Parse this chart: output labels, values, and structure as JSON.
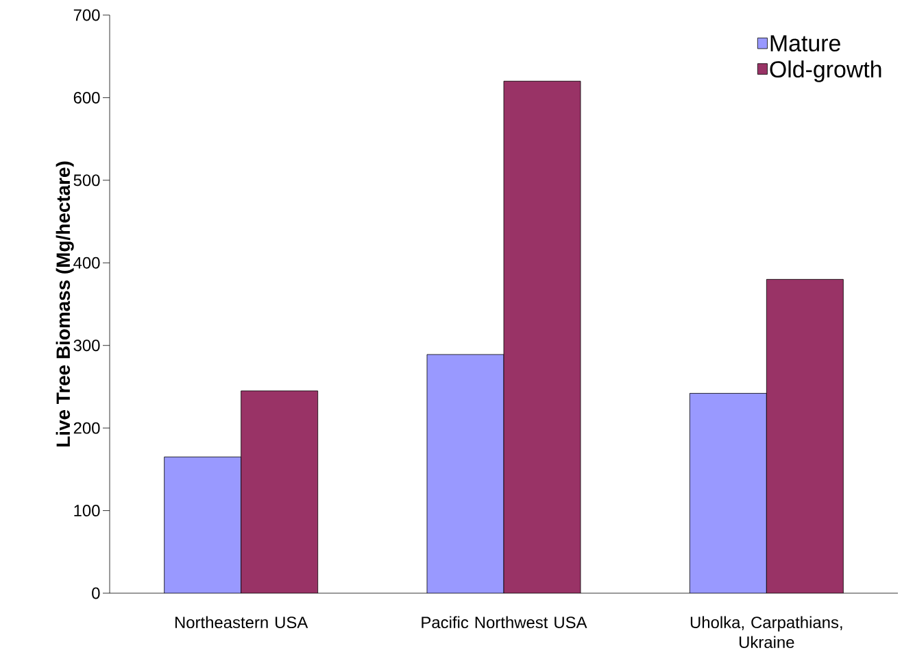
{
  "chart_data": {
    "type": "bar",
    "ylabel": "Live Tree Biomass (Mg/hectare)",
    "categories": [
      "Northeastern USA",
      "Pacific Northwest USA",
      "Uholka, Carpathians, Ukraine"
    ],
    "series": [
      {
        "name": "Mature",
        "color": "#9999ff",
        "values": [
          165,
          289,
          242
        ]
      },
      {
        "name": "Old-growth",
        "color": "#993366",
        "values": [
          245,
          620,
          380
        ]
      }
    ],
    "ylim": [
      0,
      700
    ],
    "yticks": [
      0,
      100,
      200,
      300,
      400,
      500,
      600,
      700
    ],
    "legend": "top right"
  }
}
